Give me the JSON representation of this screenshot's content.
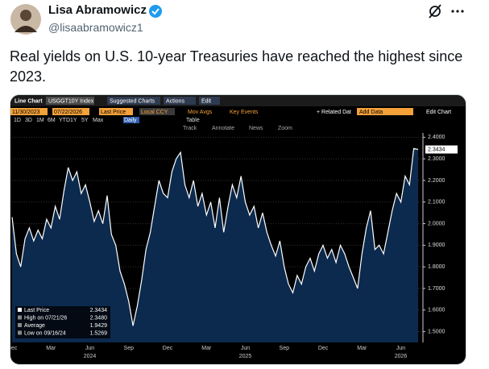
{
  "post": {
    "name": "Lisa Abramowicz",
    "handle": "@lisaabramowicz1",
    "text": "Real yields on U.S. 10-year Treasuries have reached the highest since 2023."
  },
  "toolbar": {
    "title": "Line Chart",
    "ticker": "USGGT10Y Index",
    "menus": [
      "Suggested Charts",
      "Actions",
      "Edit"
    ],
    "start_date": "11/30/2023",
    "end_date": "07/22/2026",
    "field": "Last Price",
    "currency": "Local CCY",
    "options": [
      "Mov Avgs",
      "Key Events"
    ],
    "ranges": [
      "1D",
      "3D",
      "1M",
      "6M",
      "YTD",
      "1Y",
      "5Y",
      "Max"
    ],
    "frequency": "Daily",
    "table": "Table",
    "related": "+ Related Dat",
    "add_data": "Add Data",
    "edit_chart": "Edit Chart",
    "tools": [
      "Track",
      "Annotate",
      "News",
      "Zoom"
    ]
  },
  "chart_data": {
    "type": "area",
    "color": "#ffffff",
    "fill": "#0c2a4e",
    "categories": [
      "Dec",
      null,
      null,
      null,
      null,
      null,
      null,
      null,
      null,
      "Mar",
      null,
      null,
      null,
      null,
      null,
      null,
      null,
      null,
      "Jun",
      null,
      null,
      null,
      null,
      null,
      null,
      null,
      null,
      "Sep",
      null,
      null,
      null,
      null,
      null,
      null,
      null,
      null,
      "Dec",
      null,
      null,
      null,
      null,
      null,
      null,
      null,
      null,
      "Mar",
      null,
      null,
      null,
      null,
      null,
      null,
      null,
      null,
      "Jun",
      null,
      null,
      null,
      null,
      null,
      null,
      null,
      null,
      "Sep",
      null,
      null,
      null,
      null,
      null,
      null,
      null,
      null,
      "Dec",
      null,
      null,
      null,
      null,
      null,
      null,
      null,
      null,
      "Mar",
      null,
      null,
      null,
      null,
      null,
      null,
      null,
      null,
      "Jun",
      null,
      null,
      null,
      null
    ],
    "year_labels": [
      "2024",
      "2025",
      "2026"
    ],
    "values": [
      2.03,
      1.86,
      1.8,
      1.93,
      1.98,
      1.92,
      1.97,
      1.93,
      2.02,
      1.98,
      2.08,
      2.02,
      2.15,
      2.26,
      2.2,
      2.24,
      2.14,
      2.18,
      2.1,
      2.01,
      2.06,
      2.0,
      2.13,
      1.95,
      1.9,
      1.78,
      1.72,
      1.64,
      1.5269,
      1.62,
      1.74,
      1.88,
      1.96,
      2.08,
      2.2,
      2.14,
      2.12,
      2.24,
      2.3,
      2.33,
      2.18,
      2.12,
      2.2,
      2.08,
      2.14,
      2.04,
      2.1,
      1.98,
      2.12,
      1.96,
      2.08,
      2.18,
      2.12,
      2.22,
      2.1,
      2.04,
      2.08,
      1.98,
      2.05,
      1.96,
      1.9,
      1.85,
      1.92,
      1.8,
      1.72,
      1.68,
      1.76,
      1.72,
      1.8,
      1.84,
      1.78,
      1.86,
      1.9,
      1.84,
      1.88,
      1.82,
      1.9,
      1.86,
      1.8,
      1.75,
      1.7,
      1.86,
      1.98,
      2.06,
      1.88,
      1.9,
      1.86,
      1.96,
      2.06,
      2.14,
      2.1,
      2.22,
      2.18,
      2.348,
      2.3434
    ],
    "ylim": [
      1.45,
      2.42
    ],
    "yticks": [
      {
        "value": 1.5,
        "label": "1.5000"
      },
      {
        "value": 1.6,
        "label": "1.6000"
      },
      {
        "value": 1.7,
        "label": "1.7000"
      },
      {
        "value": 1.8,
        "label": "1.8000"
      },
      {
        "value": 1.9,
        "label": "1.9000"
      },
      {
        "value": 2.0,
        "label": "2.0000"
      },
      {
        "value": 2.1,
        "label": "2.1000"
      },
      {
        "value": 2.2,
        "label": "2.2000"
      },
      {
        "value": 2.3,
        "label": "2.3000"
      },
      {
        "value": 2.4,
        "label": "2.4000"
      }
    ],
    "grid": true,
    "last_label": "2.3434",
    "legend": [
      {
        "label": "Last Price",
        "value": "2.3434"
      },
      {
        "label": "High on 07/21/26",
        "value": "2.3480"
      },
      {
        "label": "Average",
        "value": "1.9429"
      },
      {
        "label": "Low on 09/16/24",
        "value": "1.5269"
      }
    ]
  }
}
